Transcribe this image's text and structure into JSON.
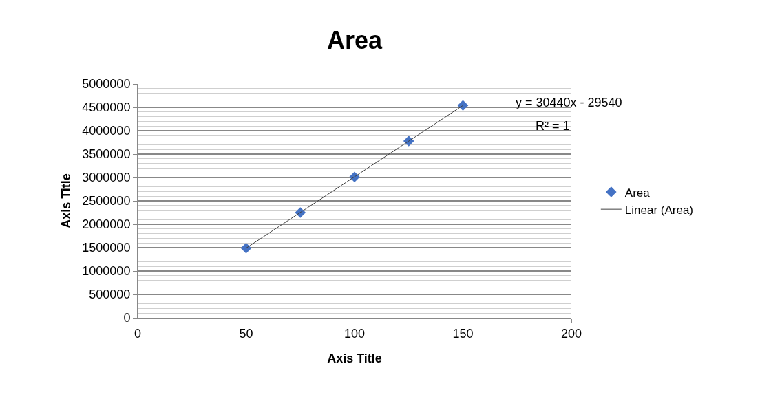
{
  "chart_data": {
    "type": "scatter",
    "title": "Area",
    "xlabel": "Axis Title",
    "ylabel": "Axis Title",
    "series": [
      {
        "name": "Area",
        "type": "scatter",
        "color": "#4472c4",
        "marker": "diamond",
        "x": [
          50,
          75,
          100,
          125,
          150
        ],
        "values": [
          1490000,
          2250000,
          3010000,
          3780000,
          4540000
        ]
      },
      {
        "name": "Linear (Area)",
        "type": "line",
        "color": "#404040",
        "marker": "none",
        "line_style": "solid",
        "x": [
          50,
          150
        ],
        "values": [
          1490000,
          4540000
        ]
      }
    ],
    "xlim": [
      0,
      200
    ],
    "xticks": [
      0,
      50,
      100,
      150,
      200
    ],
    "ylim": [
      0,
      5000000
    ],
    "yticks": [
      0,
      500000,
      1000000,
      1500000,
      2000000,
      2500000,
      3000000,
      3500000,
      4000000,
      4500000,
      5000000
    ],
    "grid": "y",
    "legend": "right",
    "annotations": [
      "y = 30440x - 29540",
      "R² = 1"
    ]
  }
}
